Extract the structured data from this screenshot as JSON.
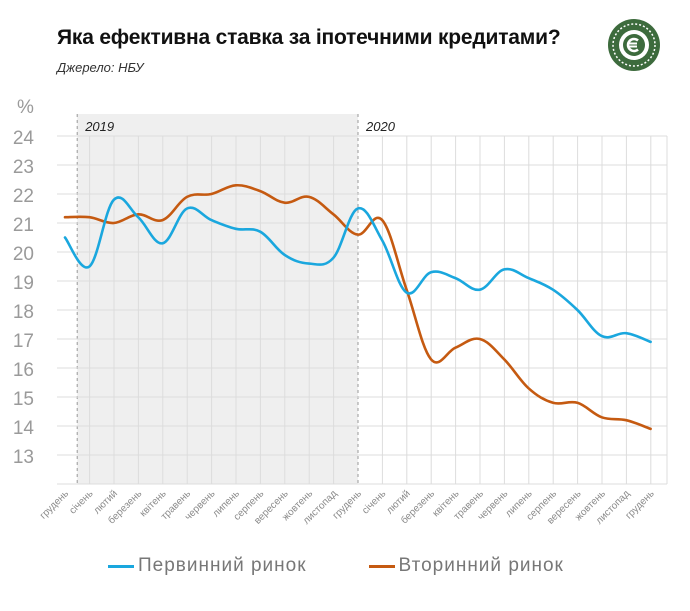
{
  "header": {
    "title": "Яка ефективна ставка за іпотечними кредитами?",
    "source": "Джерело: НБУ"
  },
  "colors": {
    "primary_market": "#1aa7de",
    "secondary_market": "#c55a11",
    "shade_2019": "#efefef",
    "grid": "#dcdcdc",
    "logo": "#3d6b3d"
  },
  "chart_data": {
    "type": "line",
    "ylabel": "%",
    "ylim": [
      12,
      24
    ],
    "yticks": [
      13,
      14,
      15,
      16,
      17,
      18,
      19,
      20,
      21,
      22,
      23,
      24
    ],
    "grid": true,
    "legend_position": "bottom",
    "categories": [
      "грудень",
      "січень",
      "лютий",
      "березень",
      "квітень",
      "травень",
      "червень",
      "липень",
      "серпень",
      "вересень",
      "жовтень",
      "листопад",
      "грудень",
      "січень",
      "лютий",
      "березень",
      "квітень",
      "травень",
      "червень",
      "липень",
      "серпень",
      "вересень",
      "жовтень",
      "листопад",
      "грудень"
    ],
    "year_labels": [
      {
        "label": "2019",
        "start_index": 1,
        "end_index": 12
      },
      {
        "label": "2020",
        "start_index": 13,
        "end_index": 24
      }
    ],
    "series": [
      {
        "name": "Первинний ринок",
        "values": [
          20.5,
          19.5,
          21.8,
          21.2,
          20.3,
          21.5,
          21.1,
          20.8,
          20.7,
          19.9,
          19.6,
          19.8,
          21.5,
          20.4,
          18.6,
          19.3,
          19.1,
          18.7,
          19.4,
          19.1,
          18.7,
          18.0,
          17.1,
          17.2,
          16.9
        ]
      },
      {
        "name": "Вторинний ринок",
        "values": [
          21.2,
          21.2,
          21.0,
          21.3,
          21.1,
          21.9,
          22.0,
          22.3,
          22.1,
          21.7,
          21.9,
          21.3,
          20.6,
          21.1,
          18.7,
          16.3,
          16.7,
          17.0,
          16.3,
          15.3,
          14.8,
          14.8,
          14.3,
          14.2,
          13.9
        ]
      }
    ]
  }
}
